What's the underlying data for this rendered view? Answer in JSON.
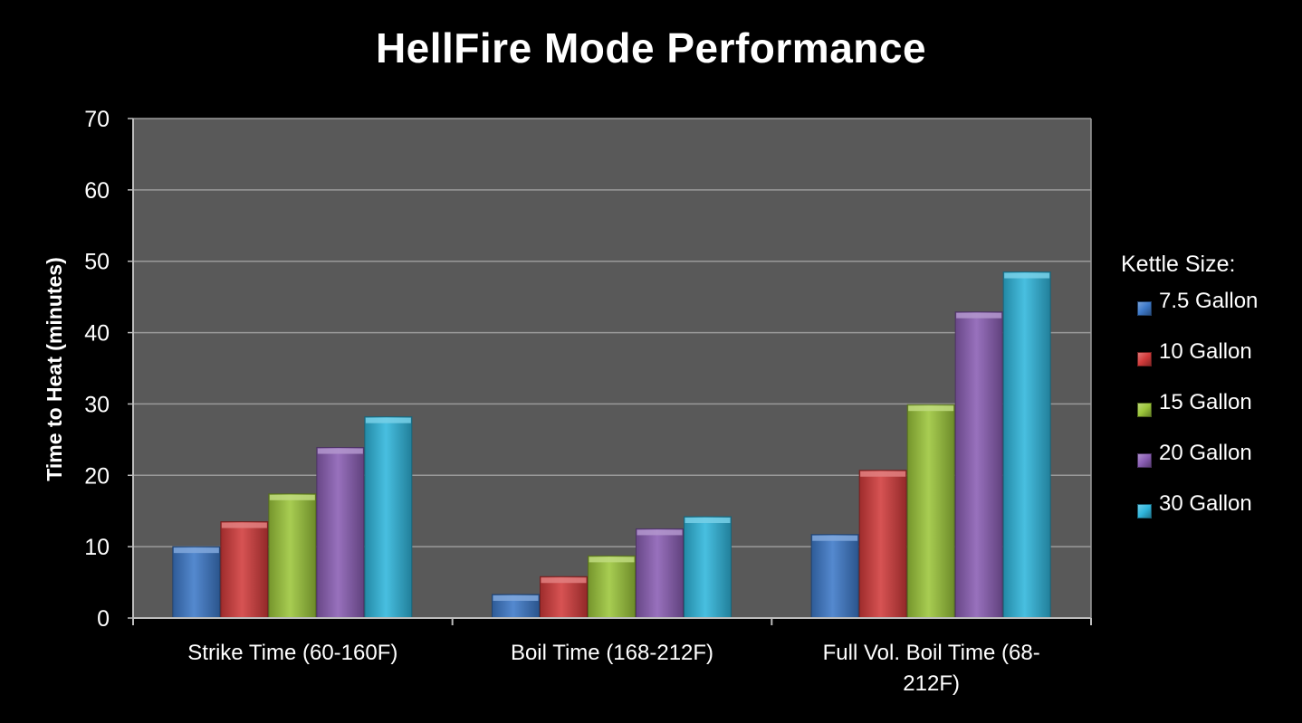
{
  "chart_data": {
    "type": "bar",
    "title": "HellFire Mode Performance",
    "xlabel": "",
    "ylabel": "Time to Heat (minutes)",
    "ylim": [
      0,
      70
    ],
    "yticks": [
      "0",
      "10",
      "20",
      "30",
      "40",
      "50",
      "60",
      "70"
    ],
    "grid": true,
    "categories": [
      "Strike Time (60-160F)",
      "Boil Time (168-212F)",
      "Full Vol. Boil Time (68-212F)"
    ],
    "legend_title": "Kettle Size:",
    "legend_position": "right",
    "series": [
      {
        "name": "7.5 Gallon",
        "values": [
          10,
          3.3,
          11.7
        ],
        "color": "#3d79c9"
      },
      {
        "name": "10 Gallon",
        "values": [
          13.5,
          5.8,
          20.7
        ],
        "color": "#d23b3b"
      },
      {
        "name": "15 Gallon",
        "values": [
          17.4,
          8.7,
          29.9
        ],
        "color": "#9cc63a"
      },
      {
        "name": "20 Gallon",
        "values": [
          23.9,
          12.5,
          42.9
        ],
        "color": "#8a5eb4"
      },
      {
        "name": "30 Gallon",
        "values": [
          28.2,
          14.2,
          48.5
        ],
        "color": "#2fb6dc"
      }
    ]
  }
}
